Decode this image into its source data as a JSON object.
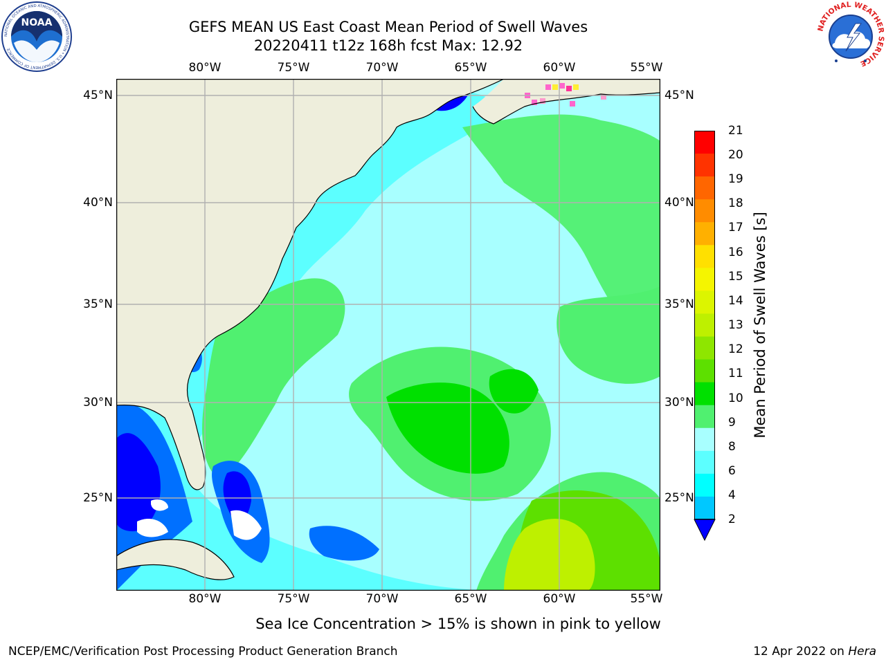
{
  "header": {
    "title_line1": "GEFS MEAN US East Coast Mean Period of Swell Waves",
    "title_line2": "20220411 t12z 168h fcst   Max: 12.92"
  },
  "logos": {
    "left": "NOAA",
    "left_ring": "NATIONAL OCEANIC AND ATMOSPHERIC ADMINISTRATION • U.S. DEPARTMENT OF COMMERCE",
    "right_ring": "NATIONAL WEATHER SERVICE"
  },
  "axes": {
    "lon_labels": [
      "80°W",
      "75°W",
      "70°W",
      "65°W",
      "60°W",
      "55°W"
    ],
    "lat_labels": [
      "45°N",
      "40°N",
      "35°N",
      "30°N",
      "25°N"
    ]
  },
  "colorbar": {
    "label": "Mean Period of Swell Waves [s]",
    "ticks": [
      "21",
      "20",
      "19",
      "18",
      "17",
      "16",
      "15",
      "14",
      "13",
      "12",
      "11",
      "10",
      "9",
      "8",
      "6",
      "4",
      "2"
    ],
    "colors": [
      "#ff0000",
      "#ff3300",
      "#ff6600",
      "#ff8c00",
      "#ffb000",
      "#ffe000",
      "#f5f500",
      "#dcf500",
      "#bef000",
      "#8ee600",
      "#5de000",
      "#00e000",
      "#50f070",
      "#a8ffff",
      "#5cffff",
      "#00ffff",
      "#00c8ff",
      "#0070ff"
    ],
    "extend_color": "#0000ff"
  },
  "map_colors": {
    "land": "#eeeedc",
    "grid": "#b0b0b0",
    "coast": "#000000",
    "ice_pink": "#ff66cc",
    "ice_yellow": "#ffee33"
  },
  "note": "Sea Ice Concentration > 15% is shown in pink to yellow",
  "footer": {
    "left": "NCEP/EMC/Verification Post Processing Product Generation Branch",
    "date": "12 Apr 2022 on",
    "host": "Hera"
  }
}
